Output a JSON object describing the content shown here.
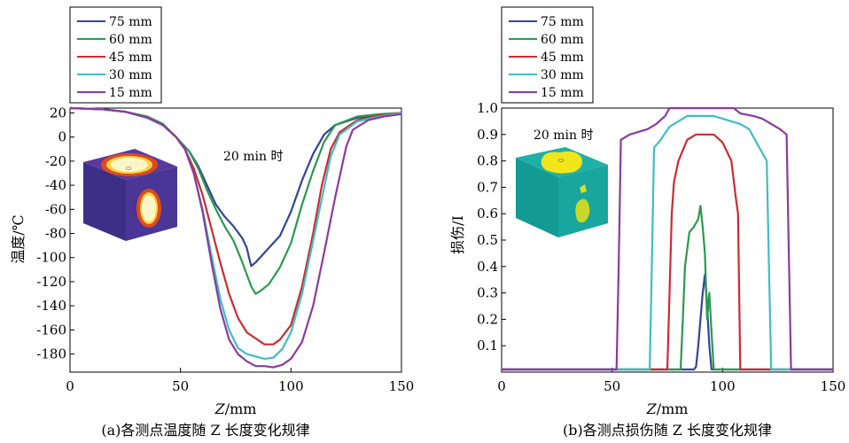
{
  "colors": {
    "75 mm": "#33449a",
    "60 mm": "#2a9a4e",
    "45 mm": "#cc2b30",
    "30 mm": "#3fbec0",
    "15 mm": "#8a3aa0"
  },
  "chart_data": [
    {
      "id": "a",
      "type": "line",
      "annotation": "20 min 时",
      "caption": "(a)各测点温度随 Z 长度变化规律",
      "xlabel_var": "Z",
      "xlabel_unit": "/mm",
      "ylabel": "温度/℃",
      "xlim": [
        0,
        150
      ],
      "ylim": [
        -195,
        24
      ],
      "xticks": [
        0,
        50,
        100,
        150
      ],
      "yticks": [
        20,
        0,
        -20,
        -40,
        -60,
        -80,
        -100,
        -120,
        -140,
        -160,
        -180
      ],
      "legend": [
        "75 mm",
        "60 mm",
        "45 mm",
        "30 mm",
        "15 mm"
      ],
      "legend_position": "top-left",
      "inset": "temperature cube",
      "series": [
        {
          "name": "75 mm",
          "points": [
            [
              0,
              24
            ],
            [
              15,
              23
            ],
            [
              25,
              21
            ],
            [
              35,
              16
            ],
            [
              42,
              10
            ],
            [
              48,
              0
            ],
            [
              54,
              -12
            ],
            [
              58,
              -24
            ],
            [
              62,
              -40
            ],
            [
              66,
              -56
            ],
            [
              70,
              -66
            ],
            [
              74,
              -74
            ],
            [
              78,
              -84
            ],
            [
              80,
              -92
            ],
            [
              81,
              -100
            ],
            [
              82,
              -107
            ],
            [
              84,
              -104
            ],
            [
              86,
              -100
            ],
            [
              90,
              -92
            ],
            [
              95,
              -82
            ],
            [
              100,
              -62
            ],
            [
              105,
              -36
            ],
            [
              110,
              -14
            ],
            [
              115,
              2
            ],
            [
              120,
              10
            ],
            [
              130,
              16
            ],
            [
              140,
              18
            ],
            [
              150,
              20
            ]
          ]
        },
        {
          "name": "60 mm",
          "points": [
            [
              0,
              24
            ],
            [
              15,
              23
            ],
            [
              25,
              21
            ],
            [
              35,
              17
            ],
            [
              42,
              11
            ],
            [
              48,
              0
            ],
            [
              54,
              -12
            ],
            [
              58,
              -26
            ],
            [
              62,
              -44
            ],
            [
              66,
              -60
            ],
            [
              70,
              -74
            ],
            [
              74,
              -86
            ],
            [
              78,
              -104
            ],
            [
              82,
              -124
            ],
            [
              84,
              -130
            ],
            [
              86,
              -128
            ],
            [
              90,
              -122
            ],
            [
              95,
              -108
            ],
            [
              100,
              -88
            ],
            [
              105,
              -56
            ],
            [
              110,
              -28
            ],
            [
              115,
              -4
            ],
            [
              120,
              10
            ],
            [
              130,
              17
            ],
            [
              140,
              19
            ],
            [
              150,
              20
            ]
          ]
        },
        {
          "name": "45 mm",
          "points": [
            [
              0,
              24
            ],
            [
              15,
              23
            ],
            [
              25,
              21
            ],
            [
              35,
              16
            ],
            [
              42,
              10
            ],
            [
              48,
              0
            ],
            [
              52,
              -10
            ],
            [
              56,
              -26
            ],
            [
              60,
              -48
            ],
            [
              64,
              -76
            ],
            [
              68,
              -104
            ],
            [
              72,
              -130
            ],
            [
              76,
              -150
            ],
            [
              80,
              -162
            ],
            [
              84,
              -167
            ],
            [
              88,
              -172
            ],
            [
              92,
              -172
            ],
            [
              95,
              -168
            ],
            [
              100,
              -156
            ],
            [
              105,
              -124
            ],
            [
              110,
              -80
            ],
            [
              114,
              -40
            ],
            [
              118,
              -10
            ],
            [
              122,
              4
            ],
            [
              130,
              14
            ],
            [
              140,
              18
            ],
            [
              150,
              20
            ]
          ]
        },
        {
          "name": "30 mm",
          "points": [
            [
              0,
              24
            ],
            [
              15,
              23
            ],
            [
              25,
              21
            ],
            [
              35,
              16
            ],
            [
              42,
              10
            ],
            [
              48,
              0
            ],
            [
              52,
              -10
            ],
            [
              56,
              -30
            ],
            [
              60,
              -60
            ],
            [
              64,
              -98
            ],
            [
              68,
              -134
            ],
            [
              72,
              -160
            ],
            [
              76,
              -175
            ],
            [
              80,
              -180
            ],
            [
              84,
              -182
            ],
            [
              88,
              -184
            ],
            [
              92,
              -183
            ],
            [
              96,
              -176
            ],
            [
              100,
              -162
            ],
            [
              105,
              -130
            ],
            [
              110,
              -86
            ],
            [
              115,
              -42
            ],
            [
              118,
              -16
            ],
            [
              122,
              2
            ],
            [
              130,
              13
            ],
            [
              140,
              17
            ],
            [
              150,
              20
            ]
          ]
        },
        {
          "name": "15 mm",
          "points": [
            [
              0,
              24
            ],
            [
              15,
              23
            ],
            [
              25,
              21
            ],
            [
              35,
              16
            ],
            [
              42,
              10
            ],
            [
              48,
              0
            ],
            [
              52,
              -10
            ],
            [
              56,
              -30
            ],
            [
              60,
              -62
            ],
            [
              64,
              -104
            ],
            [
              68,
              -142
            ],
            [
              72,
              -168
            ],
            [
              76,
              -180
            ],
            [
              80,
              -186
            ],
            [
              84,
              -190
            ],
            [
              88,
              -190
            ],
            [
              92,
              -191
            ],
            [
              96,
              -189
            ],
            [
              100,
              -184
            ],
            [
              105,
              -170
            ],
            [
              110,
              -140
            ],
            [
              115,
              -96
            ],
            [
              120,
              -50
            ],
            [
              125,
              -8
            ],
            [
              128,
              6
            ],
            [
              135,
              14
            ],
            [
              142,
              17
            ],
            [
              150,
              19
            ]
          ]
        }
      ]
    },
    {
      "id": "b",
      "type": "line",
      "annotation": "20 min 时",
      "caption": "(b)各测点损伤随 Z 长度变化规律",
      "xlabel_var": "Z",
      "xlabel_unit": "/mm",
      "ylabel": "损伤/I",
      "xlim": [
        0,
        150
      ],
      "ylim": [
        0,
        1.0
      ],
      "xticks": [
        0,
        50,
        100,
        150
      ],
      "yticks": [
        1.0,
        0.9,
        0.8,
        0.7,
        0.6,
        0.5,
        0.4,
        0.3,
        0.2,
        0.1
      ],
      "legend": [
        "75 mm",
        "60 mm",
        "45 mm",
        "30 mm",
        "15 mm"
      ],
      "legend_position": "top-left",
      "inset": "damage cube",
      "series": [
        {
          "name": "75 mm",
          "points": [
            [
              0,
              0.01
            ],
            [
              87,
              0.01
            ],
            [
              88,
              0.02
            ],
            [
              89,
              0.1
            ],
            [
              90,
              0.2
            ],
            [
              91,
              0.3
            ],
            [
              92,
              0.37
            ],
            [
              93,
              0.25
            ],
            [
              94,
              0.1
            ],
            [
              95,
              0.01
            ],
            [
              150,
              0.01
            ]
          ]
        },
        {
          "name": "60 mm",
          "points": [
            [
              0,
              0.01
            ],
            [
              81,
              0.01
            ],
            [
              82,
              0.2
            ],
            [
              83,
              0.4
            ],
            [
              85,
              0.53
            ],
            [
              87,
              0.55
            ],
            [
              89,
              0.58
            ],
            [
              90,
              0.63
            ],
            [
              91,
              0.55
            ],
            [
              92,
              0.45
            ],
            [
              93,
              0.2
            ],
            [
              94,
              0.3
            ],
            [
              95,
              0.15
            ],
            [
              96,
              0.01
            ],
            [
              150,
              0.01
            ]
          ]
        },
        {
          "name": "45 mm",
          "points": [
            [
              0,
              0.01
            ],
            [
              75,
              0.01
            ],
            [
              76,
              0.3
            ],
            [
              77,
              0.6
            ],
            [
              78,
              0.72
            ],
            [
              80,
              0.8
            ],
            [
              84,
              0.88
            ],
            [
              88,
              0.9
            ],
            [
              92,
              0.9
            ],
            [
              96,
              0.9
            ],
            [
              100,
              0.87
            ],
            [
              104,
              0.8
            ],
            [
              106,
              0.66
            ],
            [
              107,
              0.6
            ],
            [
              108,
              0.01
            ],
            [
              150,
              0.01
            ]
          ]
        },
        {
          "name": "30 mm",
          "points": [
            [
              0,
              0.01
            ],
            [
              67,
              0.01
            ],
            [
              68,
              0.4
            ],
            [
              69,
              0.85
            ],
            [
              72,
              0.88
            ],
            [
              76,
              0.93
            ],
            [
              80,
              0.95
            ],
            [
              84,
              0.97
            ],
            [
              88,
              0.97
            ],
            [
              92,
              0.97
            ],
            [
              96,
              0.97
            ],
            [
              100,
              0.96
            ],
            [
              104,
              0.95
            ],
            [
              108,
              0.94
            ],
            [
              112,
              0.92
            ],
            [
              116,
              0.86
            ],
            [
              120,
              0.8
            ],
            [
              121,
              0.4
            ],
            [
              122,
              0.01
            ],
            [
              150,
              0.01
            ]
          ]
        },
        {
          "name": "15 mm",
          "points": [
            [
              0,
              0.01
            ],
            [
              52,
              0.01
            ],
            [
              53,
              0.4
            ],
            [
              54,
              0.88
            ],
            [
              58,
              0.9
            ],
            [
              62,
              0.91
            ],
            [
              66,
              0.92
            ],
            [
              70,
              0.94
            ],
            [
              74,
              0.97
            ],
            [
              76,
              1.0
            ],
            [
              90,
              1.0
            ],
            [
              105,
              1.0
            ],
            [
              108,
              0.98
            ],
            [
              114,
              0.97
            ],
            [
              118,
              0.96
            ],
            [
              122,
              0.94
            ],
            [
              126,
              0.92
            ],
            [
              129,
              0.9
            ],
            [
              130,
              0.45
            ],
            [
              131,
              0.01
            ],
            [
              150,
              0.01
            ]
          ]
        }
      ]
    }
  ]
}
